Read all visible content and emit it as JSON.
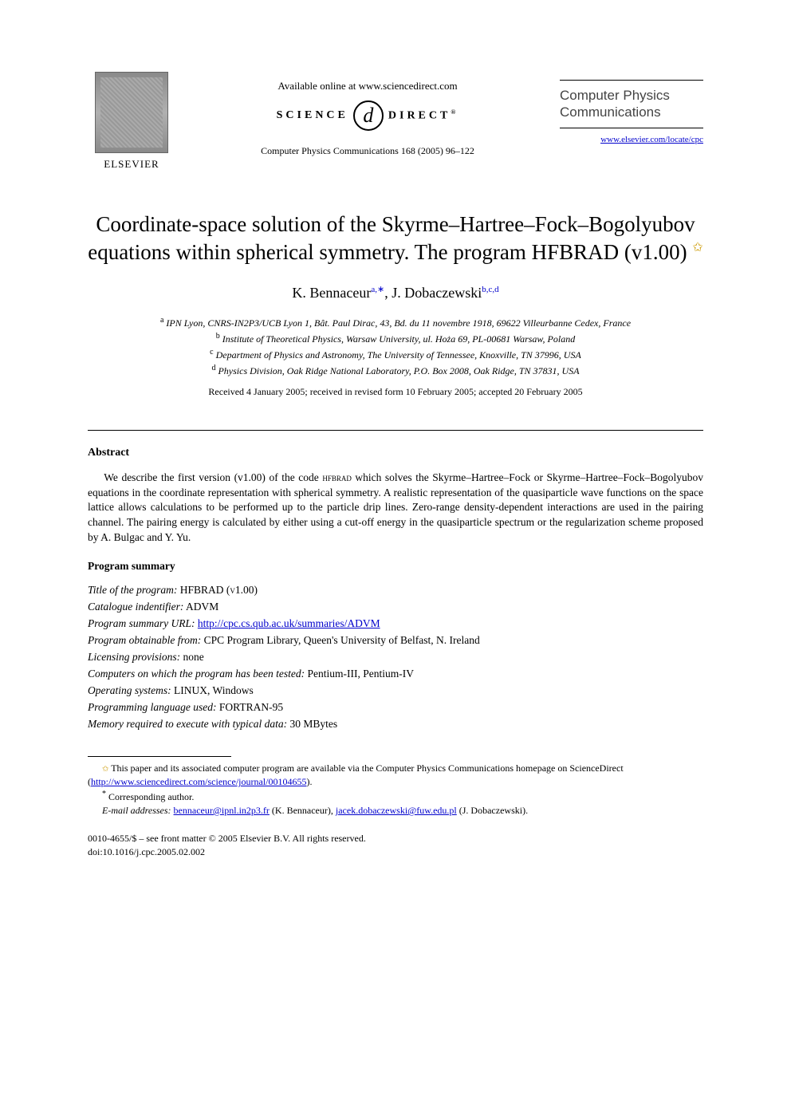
{
  "header": {
    "publisher": "ELSEVIER",
    "available_online": "Available online at www.sciencedirect.com",
    "science_direct_left": "SCIENCE",
    "science_direct_d": "d",
    "science_direct_right": "DIRECT",
    "science_direct_reg": "®",
    "journal_ref": "Computer Physics Communications 168 (2005) 96–122",
    "journal_name": "Computer Physics Communications",
    "journal_url": "www.elsevier.com/locate/cpc"
  },
  "title": {
    "line": "Coordinate-space solution of the Skyrme–Hartree–Fock–Bogolyubov equations within spherical symmetry. The program HFBRAD (v1.00)",
    "star": "✩"
  },
  "authors": {
    "a1_name": "K. Bennaceur",
    "a1_sup": "a,∗",
    "sep": ", ",
    "a2_name": "J. Dobaczewski",
    "a2_sup": "b,c,d"
  },
  "affiliations": {
    "a": "IPN Lyon, CNRS-IN2P3/UCB Lyon 1, Bât. Paul Dirac, 43, Bd. du 11 novembre 1918, 69622 Villeurbanne Cedex, France",
    "b": "Institute of Theoretical Physics, Warsaw University, ul. Hoża 69, PL-00681 Warsaw, Poland",
    "c": "Department of Physics and Astronomy, The University of Tennessee, Knoxville, TN 37996, USA",
    "d": "Physics Division, Oak Ridge National Laboratory, P.O. Box 2008, Oak Ridge, TN 37831, USA"
  },
  "dates": "Received 4 January 2005; received in revised form 10 February 2005; accepted 20 February 2005",
  "abstract": {
    "heading": "Abstract",
    "text_pre": "We describe the first version (v1.00) of the code ",
    "code_name": "hfbrad",
    "text_post": " which solves the Skyrme–Hartree–Fock or Skyrme–Hartree–Fock–Bogolyubov equations in the coordinate representation with spherical symmetry. A realistic representation of the quasiparticle wave functions on the space lattice allows calculations to be performed up to the particle drip lines. Zero-range density-dependent interactions are used in the pairing channel. The pairing energy is calculated by either using a cut-off energy in the quasiparticle spectrum or the regularization scheme proposed by A. Bulgac and Y. Yu."
  },
  "program_summary": {
    "heading": "Program summary",
    "items": [
      {
        "label": "Title of the program:",
        "value": " HFBRAD (v1.00)",
        "smallcaps": true
      },
      {
        "label": "Catalogue indentifier:",
        "value": " ADVM"
      },
      {
        "label": "Program summary URL:",
        "value": " ",
        "link": "http://cpc.cs.qub.ac.uk/summaries/ADVM"
      },
      {
        "label": "Program obtainable from:",
        "value": " CPC Program Library, Queen's University of Belfast, N. Ireland"
      },
      {
        "label": "Licensing provisions:",
        "value": " none"
      },
      {
        "label": "Computers on which the program has been tested:",
        "value": " Pentium-III, Pentium-IV"
      },
      {
        "label": "Operating systems:",
        "value": " LINUX, Windows"
      },
      {
        "label": "Programming language used:",
        "value": " FORTRAN-95"
      },
      {
        "label": "Memory required to execute with typical data:",
        "value": " 30 MBytes"
      }
    ]
  },
  "footnotes": {
    "f1_pre": "This paper and its associated computer program are available via the Computer Physics Communications homepage on ScienceDirect (",
    "f1_link": "http://www.sciencedirect.com/science/journal/00104655",
    "f1_post": ").",
    "f2": "Corresponding author.",
    "f3_label": "E-mail addresses:",
    "f3_email1": "bennaceur@ipnl.in2p3.fr",
    "f3_name1": " (K. Bennaceur), ",
    "f3_email2": "jacek.dobaczewski@fuw.edu.pl",
    "f3_name2": " (J. Dobaczewski)."
  },
  "copyright": {
    "line1": "0010-4655/$ – see front matter © 2005 Elsevier B.V. All rights reserved.",
    "line2": "doi:10.1016/j.cpc.2005.02.002"
  }
}
